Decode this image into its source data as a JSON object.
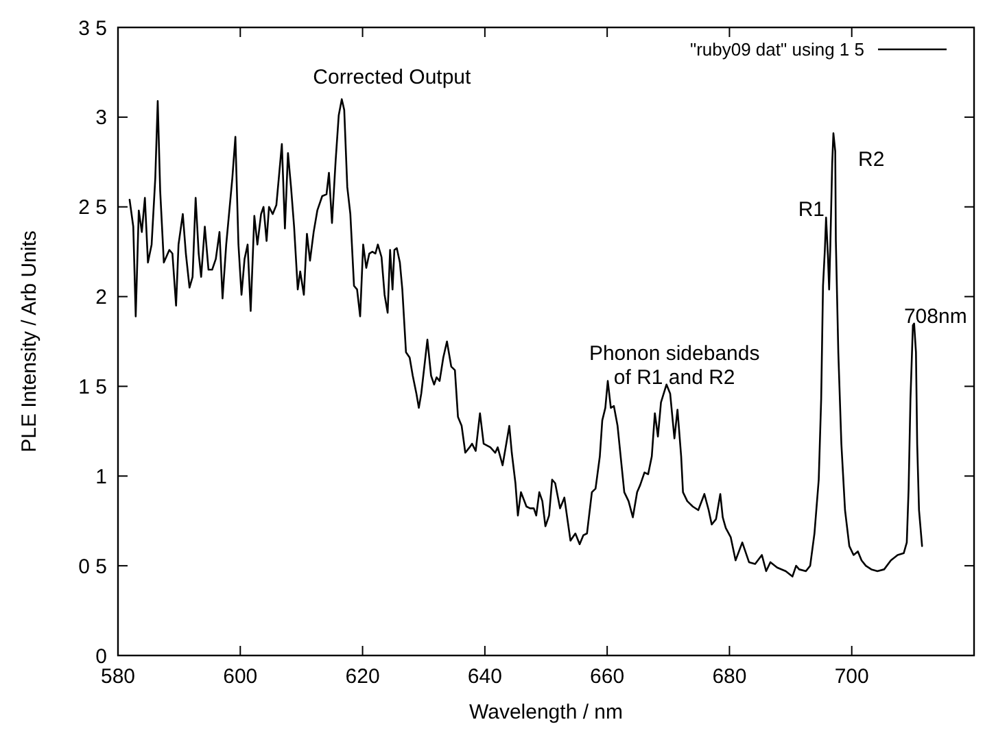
{
  "chart_data": {
    "type": "line",
    "xlabel": "Wavelength / nm",
    "ylabel": "PLE Intensity / Arb  Units",
    "xlim": [
      580,
      720
    ],
    "xticks": [
      580,
      600,
      620,
      640,
      660,
      680,
      700
    ],
    "ylim": [
      0,
      3.5
    ],
    "yticks": [
      0,
      {
        "value": 0.5,
        "label": "0 5"
      },
      1,
      {
        "value": 1.5,
        "label": "1 5"
      },
      2,
      {
        "value": 2.5,
        "label": "2 5"
      },
      3,
      {
        "value": 3.5,
        "label": "3 5"
      }
    ],
    "legend": "top right",
    "grid": false,
    "marker": "none",
    "line_style": "solid",
    "annotations": [
      "Corrected Output",
      "Phonon sidebands\nof R1 and R2",
      "R1",
      "R2",
      "708nm"
    ],
    "series": [
      {
        "name": "\"ruby09 dat\" using 1 5",
        "color": "#000000",
        "x": [
          581.9,
          582.5,
          582.9,
          583.4,
          583.9,
          584.4,
          584.9,
          585.5,
          586.1,
          586.5,
          586.9,
          587.5,
          588.4,
          588.9,
          589.5,
          589.9,
          590.6,
          591.1,
          591.7,
          592.2,
          592.7,
          593.2,
          593.6,
          594.2,
          594.8,
          595.4,
          596.0,
          596.6,
          597.1,
          597.7,
          598.7,
          599.2,
          599.7,
          600.2,
          600.7,
          601.2,
          601.7,
          602.3,
          602.8,
          603.4,
          603.8,
          604.3,
          604.7,
          605.3,
          605.9,
          606.3,
          606.8,
          607.3,
          607.8,
          608.3,
          608.8,
          609.4,
          609.8,
          610.4,
          610.9,
          611.4,
          612.0,
          612.6,
          613.4,
          614.1,
          614.5,
          615.0,
          615.6,
          616.1,
          616.6,
          617.0,
          617.5,
          618.0,
          618.6,
          619.1,
          619.6,
          620.1,
          620.6,
          621.1,
          621.6,
          622.1,
          622.5,
          623.1,
          623.6,
          624.1,
          624.5,
          624.9,
          625.2,
          625.6,
          626.1,
          626.5,
          627.1,
          627.7,
          628.2,
          628.8,
          629.2,
          629.6,
          630.2,
          630.6,
          631.2,
          631.7,
          632.1,
          632.6,
          633.2,
          633.8,
          634.5,
          635.1,
          635.6,
          636.2,
          636.8,
          637.5,
          637.9,
          638.5,
          639.2,
          639.8,
          640.9,
          641.7,
          642.1,
          642.5,
          642.9,
          643.4,
          644.0,
          644.4,
          645.0,
          645.4,
          645.9,
          646.8,
          647.4,
          648.0,
          648.4,
          648.9,
          649.4,
          649.9,
          650.5,
          651.0,
          651.5,
          652.3,
          653.0,
          654.0,
          654.8,
          655.5,
          656.1,
          656.7,
          657.5,
          658.1,
          658.8,
          659.2,
          659.7,
          660.1,
          660.6,
          661.1,
          661.7,
          662.8,
          663.5,
          664.2,
          664.9,
          665.4,
          666.1,
          666.7,
          667.3,
          667.8,
          668.3,
          668.8,
          669.7,
          670.3,
          671.0,
          671.5,
          672.1,
          672.4,
          673.1,
          674.0,
          674.9,
          675.9,
          676.6,
          677.1,
          677.8,
          678.5,
          678.9,
          679.4,
          680.2,
          681.0,
          682.1,
          683.2,
          684.2,
          685.3,
          686.0,
          686.7,
          687.8,
          689.2,
          690.3,
          690.9,
          691.4,
          692.5,
          693.2,
          693.9,
          694.6,
          695.0,
          695.3,
          695.6,
          695.8,
          696.1,
          696.3,
          696.5,
          696.8,
          697.0,
          697.3,
          697.4,
          697.8,
          698.3,
          698.9,
          699.6,
          700.3,
          701.0,
          701.6,
          702.3,
          703.2,
          704.2,
          705.3,
          706.4,
          707.5,
          708.5,
          709.0,
          709.3,
          709.6,
          710.0,
          710.2,
          710.5,
          710.7,
          711.0,
          711.5
        ],
        "values": [
          2.54,
          2.39,
          1.89,
          2.48,
          2.36,
          2.55,
          2.19,
          2.29,
          2.66,
          3.09,
          2.59,
          2.19,
          2.26,
          2.24,
          1.95,
          2.29,
          2.46,
          2.24,
          2.05,
          2.11,
          2.55,
          2.24,
          2.11,
          2.39,
          2.15,
          2.15,
          2.21,
          2.36,
          1.99,
          2.29,
          2.66,
          2.89,
          2.29,
          2.01,
          2.21,
          2.29,
          1.92,
          2.45,
          2.29,
          2.46,
          2.5,
          2.31,
          2.5,
          2.46,
          2.51,
          2.66,
          2.85,
          2.38,
          2.8,
          2.61,
          2.39,
          2.04,
          2.14,
          2.01,
          2.35,
          2.2,
          2.36,
          2.48,
          2.56,
          2.57,
          2.69,
          2.41,
          2.76,
          3.01,
          3.1,
          3.04,
          2.61,
          2.46,
          2.06,
          2.04,
          1.89,
          2.29,
          2.16,
          2.24,
          2.25,
          2.24,
          2.29,
          2.22,
          2.01,
          1.91,
          2.26,
          2.04,
          2.26,
          2.27,
          2.19,
          2.04,
          1.69,
          1.66,
          1.56,
          1.46,
          1.38,
          1.46,
          1.64,
          1.76,
          1.56,
          1.51,
          1.55,
          1.53,
          1.66,
          1.75,
          1.61,
          1.59,
          1.33,
          1.28,
          1.13,
          1.16,
          1.18,
          1.14,
          1.35,
          1.18,
          1.16,
          1.13,
          1.16,
          1.11,
          1.06,
          1.16,
          1.28,
          1.13,
          0.96,
          0.78,
          0.91,
          0.83,
          0.82,
          0.82,
          0.78,
          0.91,
          0.86,
          0.72,
          0.78,
          0.98,
          0.96,
          0.82,
          0.88,
          0.64,
          0.68,
          0.62,
          0.67,
          0.68,
          0.91,
          0.93,
          1.11,
          1.31,
          1.38,
          1.53,
          1.38,
          1.39,
          1.28,
          0.91,
          0.86,
          0.77,
          0.91,
          0.95,
          1.02,
          1.01,
          1.11,
          1.35,
          1.22,
          1.41,
          1.51,
          1.46,
          1.21,
          1.37,
          1.11,
          0.91,
          0.86,
          0.83,
          0.81,
          0.9,
          0.81,
          0.73,
          0.76,
          0.9,
          0.77,
          0.71,
          0.66,
          0.53,
          0.63,
          0.52,
          0.51,
          0.56,
          0.47,
          0.52,
          0.49,
          0.47,
          0.44,
          0.5,
          0.48,
          0.47,
          0.5,
          0.68,
          0.98,
          1.43,
          2.06,
          2.26,
          2.44,
          2.23,
          2.04,
          2.29,
          2.74,
          2.91,
          2.81,
          2.31,
          1.69,
          1.18,
          0.81,
          0.61,
          0.56,
          0.58,
          0.53,
          0.5,
          0.48,
          0.47,
          0.48,
          0.53,
          0.56,
          0.57,
          0.63,
          0.93,
          1.43,
          1.84,
          1.85,
          1.69,
          1.18,
          0.81,
          0.61
        ]
      }
    ]
  }
}
